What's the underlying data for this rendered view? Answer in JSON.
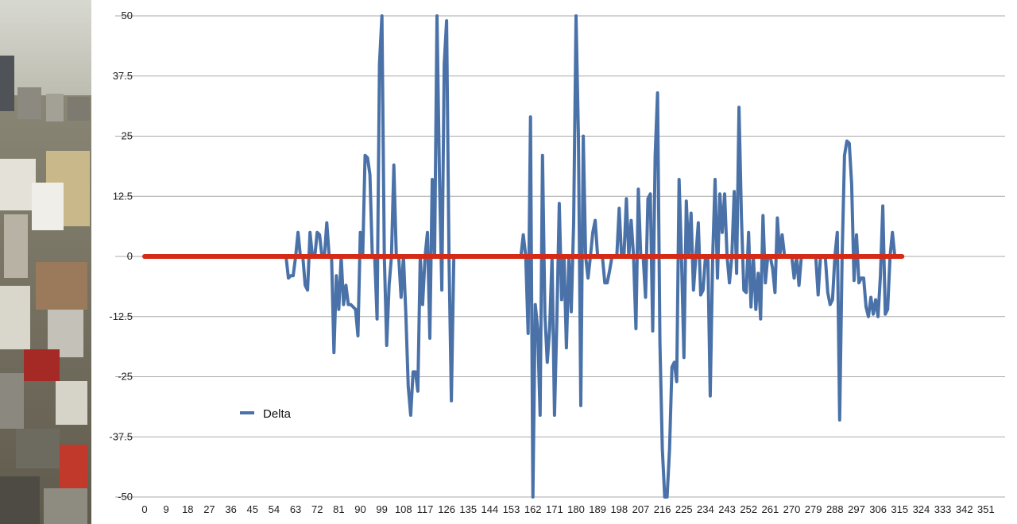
{
  "chart_data": {
    "type": "line",
    "title": "",
    "xlabel": "",
    "ylabel": "",
    "ylim": [
      -50,
      50
    ],
    "xlim": [
      0,
      359
    ],
    "y_ticks": [
      50,
      37.5,
      25,
      12.5,
      0,
      -12.5,
      -25,
      -37.5,
      -50
    ],
    "y_tick_labels": [
      "50",
      "37.5",
      "25",
      "12.5",
      "0",
      "-12.5",
      "-25",
      "-37.5",
      "-50"
    ],
    "x_ticks": [
      0,
      9,
      18,
      27,
      36,
      45,
      54,
      63,
      72,
      81,
      90,
      99,
      108,
      117,
      126,
      135,
      144,
      153,
      162,
      171,
      180,
      189,
      198,
      207,
      216,
      225,
      234,
      243,
      252,
      261,
      270,
      279,
      288,
      297,
      306,
      315,
      324,
      333,
      342,
      351
    ],
    "grid": "horizontal",
    "legend": "lower-left",
    "series": [
      {
        "name": "Delta",
        "color": "#4a72a8",
        "points": [
          [
            59,
            0
          ],
          [
            60,
            -4.5
          ],
          [
            61,
            -4
          ],
          [
            62,
            -4
          ],
          [
            63,
            0
          ],
          [
            64,
            5
          ],
          [
            65,
            0
          ],
          [
            66,
            0
          ],
          [
            67,
            -6
          ],
          [
            68,
            -7
          ],
          [
            69,
            5
          ],
          [
            70,
            0
          ],
          [
            71,
            0
          ],
          [
            72,
            5
          ],
          [
            73,
            4.5
          ],
          [
            74,
            0
          ],
          [
            75,
            0
          ],
          [
            76,
            7
          ],
          [
            77,
            0
          ],
          [
            78,
            0
          ],
          [
            79,
            -20
          ],
          [
            80,
            -4
          ],
          [
            81,
            -11
          ],
          [
            82,
            0
          ],
          [
            83,
            -10
          ],
          [
            84,
            -6
          ],
          [
            85,
            -10
          ],
          [
            86,
            -10
          ],
          [
            87,
            -10.5
          ],
          [
            88,
            -11
          ],
          [
            89,
            -16.5
          ],
          [
            90,
            5
          ],
          [
            91,
            0
          ],
          [
            92,
            21
          ],
          [
            93,
            20.5
          ],
          [
            94,
            17
          ],
          [
            95,
            0
          ],
          [
            96,
            0
          ],
          [
            97,
            -13
          ],
          [
            98,
            40
          ],
          [
            99,
            50
          ],
          [
            100,
            0
          ],
          [
            101,
            -18.5
          ],
          [
            102,
            -6
          ],
          [
            103,
            0
          ],
          [
            104,
            19
          ],
          [
            105,
            0
          ],
          [
            106,
            0
          ],
          [
            107,
            -8.5
          ],
          [
            108,
            0
          ],
          [
            109,
            -12
          ],
          [
            110,
            -27
          ],
          [
            111,
            -33
          ],
          [
            112,
            -24
          ],
          [
            113,
            -24
          ],
          [
            114,
            -28
          ],
          [
            115,
            0
          ],
          [
            116,
            -10
          ],
          [
            117,
            0
          ],
          [
            118,
            5
          ],
          [
            119,
            -17
          ],
          [
            120,
            16
          ],
          [
            121,
            0
          ],
          [
            122,
            50
          ],
          [
            123,
            16.5
          ],
          [
            124,
            -7
          ],
          [
            125,
            40
          ],
          [
            126,
            49
          ],
          [
            127,
            0
          ],
          [
            128,
            -30
          ],
          [
            129,
            0
          ],
          [
            157,
            0
          ],
          [
            158,
            4.5
          ],
          [
            159,
            0
          ],
          [
            160,
            -16
          ],
          [
            161,
            29
          ],
          [
            162,
            -50
          ],
          [
            163,
            -10
          ],
          [
            164,
            -15
          ],
          [
            165,
            -33
          ],
          [
            166,
            21
          ],
          [
            167,
            -12
          ],
          [
            168,
            -22
          ],
          [
            169,
            -15
          ],
          [
            170,
            0
          ],
          [
            171,
            -33
          ],
          [
            172,
            -13
          ],
          [
            173,
            11
          ],
          [
            174,
            -9
          ],
          [
            175,
            0
          ],
          [
            176,
            -19
          ],
          [
            177,
            0
          ],
          [
            178,
            -11.5
          ],
          [
            179,
            7
          ],
          [
            180,
            50
          ],
          [
            181,
            25
          ],
          [
            182,
            -31
          ],
          [
            183,
            25
          ],
          [
            184,
            0
          ],
          [
            185,
            -4.5
          ],
          [
            186,
            0
          ],
          [
            187,
            5
          ],
          [
            188,
            7.5
          ],
          [
            189,
            0
          ],
          [
            190,
            0
          ],
          [
            191,
            0
          ],
          [
            192,
            -5.5
          ],
          [
            193,
            -5.5
          ],
          [
            194,
            -3
          ],
          [
            195,
            0
          ],
          [
            196,
            0
          ],
          [
            197,
            0
          ],
          [
            198,
            10
          ],
          [
            199,
            0
          ],
          [
            200,
            0
          ],
          [
            201,
            12
          ],
          [
            202,
            0
          ],
          [
            203,
            7.5
          ],
          [
            204,
            0
          ],
          [
            205,
            -15
          ],
          [
            206,
            14
          ],
          [
            207,
            0
          ],
          [
            208,
            0
          ],
          [
            209,
            -8.5
          ],
          [
            210,
            12
          ],
          [
            211,
            13
          ],
          [
            212,
            -15.5
          ],
          [
            213,
            21
          ],
          [
            214,
            34
          ],
          [
            215,
            -18
          ],
          [
            216,
            -40
          ],
          [
            217,
            -50
          ],
          [
            218,
            -50
          ],
          [
            219,
            -40
          ],
          [
            220,
            -23
          ],
          [
            221,
            -22
          ],
          [
            222,
            -26
          ],
          [
            223,
            16
          ],
          [
            224,
            0
          ],
          [
            225,
            -21
          ],
          [
            226,
            11.5
          ],
          [
            227,
            0
          ],
          [
            228,
            9
          ],
          [
            229,
            -7
          ],
          [
            230,
            0
          ],
          [
            231,
            7
          ],
          [
            232,
            -8
          ],
          [
            233,
            -7
          ],
          [
            234,
            0
          ],
          [
            235,
            0
          ],
          [
            236,
            -29
          ],
          [
            237,
            0
          ],
          [
            238,
            16
          ],
          [
            239,
            -4.5
          ],
          [
            240,
            13
          ],
          [
            241,
            5
          ],
          [
            242,
            13
          ],
          [
            243,
            0
          ],
          [
            244,
            -5.5
          ],
          [
            245,
            0
          ],
          [
            246,
            13.5
          ],
          [
            247,
            -3.5
          ],
          [
            248,
            31
          ],
          [
            249,
            8
          ],
          [
            250,
            -7
          ],
          [
            251,
            -7.5
          ],
          [
            252,
            5
          ],
          [
            253,
            -10.5
          ],
          [
            254,
            0
          ],
          [
            255,
            -11
          ],
          [
            256,
            -3.5
          ],
          [
            257,
            -13
          ],
          [
            258,
            8.5
          ],
          [
            259,
            -5.5
          ],
          [
            260,
            0
          ],
          [
            261,
            0
          ],
          [
            262,
            -2.5
          ],
          [
            263,
            -7.5
          ],
          [
            264,
            8
          ],
          [
            265,
            0
          ],
          [
            266,
            4.5
          ],
          [
            267,
            0
          ],
          [
            268,
            0
          ],
          [
            269,
            0
          ],
          [
            270,
            0
          ],
          [
            271,
            -4.5
          ],
          [
            272,
            0
          ],
          [
            273,
            -6
          ],
          [
            274,
            0
          ],
          [
            275,
            0
          ],
          [
            280,
            0
          ],
          [
            281,
            -8
          ],
          [
            282,
            0
          ],
          [
            283,
            0
          ],
          [
            284,
            0
          ],
          [
            285,
            -7.5
          ],
          [
            286,
            -10
          ],
          [
            287,
            -9
          ],
          [
            288,
            0
          ],
          [
            289,
            5
          ],
          [
            290,
            -34
          ],
          [
            291,
            0
          ],
          [
            292,
            21
          ],
          [
            293,
            24
          ],
          [
            294,
            23.5
          ],
          [
            295,
            15
          ],
          [
            296,
            -5
          ],
          [
            297,
            4.5
          ],
          [
            298,
            -5.5
          ],
          [
            299,
            -4.5
          ],
          [
            300,
            -4.5
          ],
          [
            301,
            -10.5
          ],
          [
            302,
            -12.5
          ],
          [
            303,
            -8.5
          ],
          [
            304,
            -12
          ],
          [
            305,
            -9
          ],
          [
            306,
            -12.5
          ],
          [
            307,
            -4
          ],
          [
            308,
            10.5
          ],
          [
            309,
            -12
          ],
          [
            310,
            -11
          ],
          [
            311,
            0
          ],
          [
            312,
            5
          ],
          [
            313,
            0
          ]
        ]
      },
      {
        "name": "",
        "color": "#d42a16",
        "points": [
          [
            0,
            0
          ],
          [
            316,
            0
          ]
        ]
      }
    ]
  },
  "legend": {
    "label": "Delta",
    "color": "#4a72a8"
  }
}
